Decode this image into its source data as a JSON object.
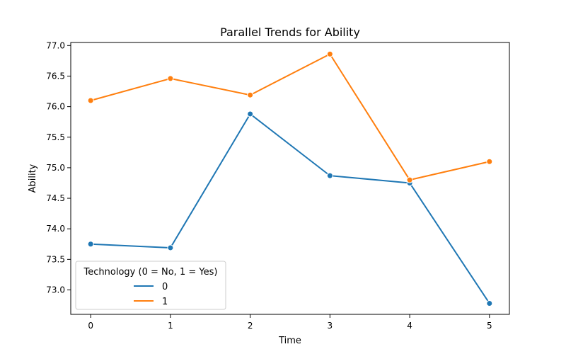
{
  "chart_data": {
    "type": "line",
    "title": "Parallel Trends for Ability",
    "xlabel": "Time",
    "ylabel": "Ability",
    "x": [
      0,
      1,
      2,
      3,
      4,
      5
    ],
    "xlim": [
      -0.25,
      5.25
    ],
    "ylim": [
      72.6,
      77.05
    ],
    "x_ticks": [
      "0",
      "1",
      "2",
      "3",
      "4",
      "5"
    ],
    "y_ticks": [
      "73.0",
      "73.5",
      "74.0",
      "74.5",
      "75.0",
      "75.5",
      "76.0",
      "76.5",
      "77.0"
    ],
    "grid": false,
    "legend": {
      "title": "Technology (0 = No, 1 = Yes)",
      "placement": "bottom-left"
    },
    "series": [
      {
        "name": "0",
        "color": "#1f77b4",
        "marker": "circle",
        "values": [
          73.75,
          73.69,
          75.88,
          74.87,
          74.75,
          72.78
        ]
      },
      {
        "name": "1",
        "color": "#ff7f0e",
        "marker": "circle",
        "values": [
          76.1,
          76.46,
          76.19,
          76.86,
          74.8,
          75.1
        ]
      }
    ]
  }
}
